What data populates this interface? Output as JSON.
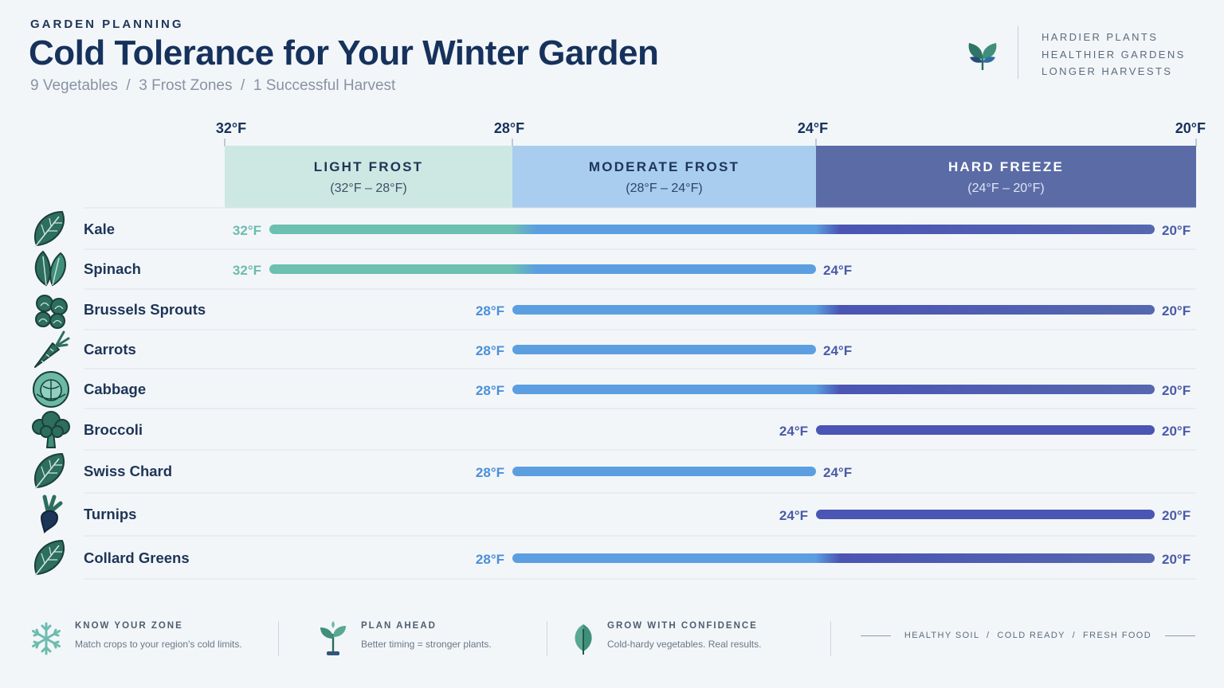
{
  "header": {
    "eyebrow": "GARDEN PLANNING",
    "title": "Cold Tolerance for Your Winter Garden",
    "subtitle": "9 Vegetables  /  3 Frost Zones  /  1 Successful Harvest",
    "brand_icon": "leaf-sprout-icon",
    "taglines": [
      "HARDIER PLANTS",
      "HEALTHIER GARDENS",
      "LONGER HARVESTS"
    ]
  },
  "chart_data": {
    "type": "bar",
    "subtype": "floating-range",
    "x_axis": {
      "ticks": [
        "32°F",
        "28°F",
        "24°F",
        "20°F"
      ],
      "tick_values": [
        32,
        28,
        24,
        20
      ],
      "direction": "decreasing",
      "range": [
        32,
        20
      ]
    },
    "zones": [
      {
        "name": "LIGHT FROST",
        "range_label": "(32°F – 28°F)",
        "from": 32,
        "to": 28,
        "color": "#cde8e2"
      },
      {
        "name": "MODERATE FROST",
        "range_label": "(28°F – 24°F)",
        "from": 28,
        "to": 24,
        "color": "#a9cdef"
      },
      {
        "name": "HARD FREEZE",
        "range_label": "(24°F – 20°F)",
        "from": 24,
        "to": 20,
        "color": "#5a6ba6"
      }
    ],
    "categories": [
      "Kale",
      "Spinach",
      "Brussels Sprouts",
      "Carrots",
      "Cabbage",
      "Broccoli",
      "Swiss Chard",
      "Turnips",
      "Collard Greens"
    ],
    "series": [
      {
        "category": "Kale",
        "icon": "kale-leaf-icon",
        "start": 32,
        "end": 20,
        "start_label": "32°F",
        "end_label": "20°F"
      },
      {
        "category": "Spinach",
        "icon": "spinach-leaves-icon",
        "start": 32,
        "end": 24,
        "start_label": "32°F",
        "end_label": "24°F"
      },
      {
        "category": "Brussels Sprouts",
        "icon": "brussels-sprouts-icon",
        "start": 28,
        "end": 20,
        "start_label": "28°F",
        "end_label": "20°F"
      },
      {
        "category": "Carrots",
        "icon": "carrot-icon",
        "start": 28,
        "end": 24,
        "start_label": "28°F",
        "end_label": "24°F"
      },
      {
        "category": "Cabbage",
        "icon": "cabbage-icon",
        "start": 28,
        "end": 20,
        "start_label": "28°F",
        "end_label": "20°F"
      },
      {
        "category": "Broccoli",
        "icon": "broccoli-icon",
        "start": 24,
        "end": 20,
        "start_label": "24°F",
        "end_label": "20°F"
      },
      {
        "category": "Swiss Chard",
        "icon": "swiss-chard-leaf-icon",
        "start": 28,
        "end": 24,
        "start_label": "28°F",
        "end_label": "24°F"
      },
      {
        "category": "Turnips",
        "icon": "turnip-icon",
        "start": 24,
        "end": 20,
        "start_label": "24°F",
        "end_label": "20°F"
      },
      {
        "category": "Collard Greens",
        "icon": "collard-greens-leaf-icon",
        "start": 28,
        "end": 20,
        "start_label": "28°F",
        "end_label": "20°F"
      }
    ],
    "colors": {
      "light": "#6cc0b0",
      "moderate": "#5b9fe0",
      "hard": "#4b55b3",
      "label_light": "#6cbcae",
      "label_moderate": "#4a90d9",
      "label_hard": "#4a5ba8"
    }
  },
  "footer": {
    "items": [
      {
        "icon": "snowflake-icon",
        "title": "KNOW YOUR ZONE",
        "text": "Match crops to your region's cold limits."
      },
      {
        "icon": "seedling-icon",
        "title": "PLAN AHEAD",
        "text": "Better timing = stronger plants."
      },
      {
        "icon": "leaf-icon",
        "title": "GROW WITH CONFIDENCE",
        "text": "Cold-hardy vegetables. Real results."
      }
    ],
    "tags": "HEALTHY SOIL  /  COLD READY  /  FRESH FOOD"
  }
}
